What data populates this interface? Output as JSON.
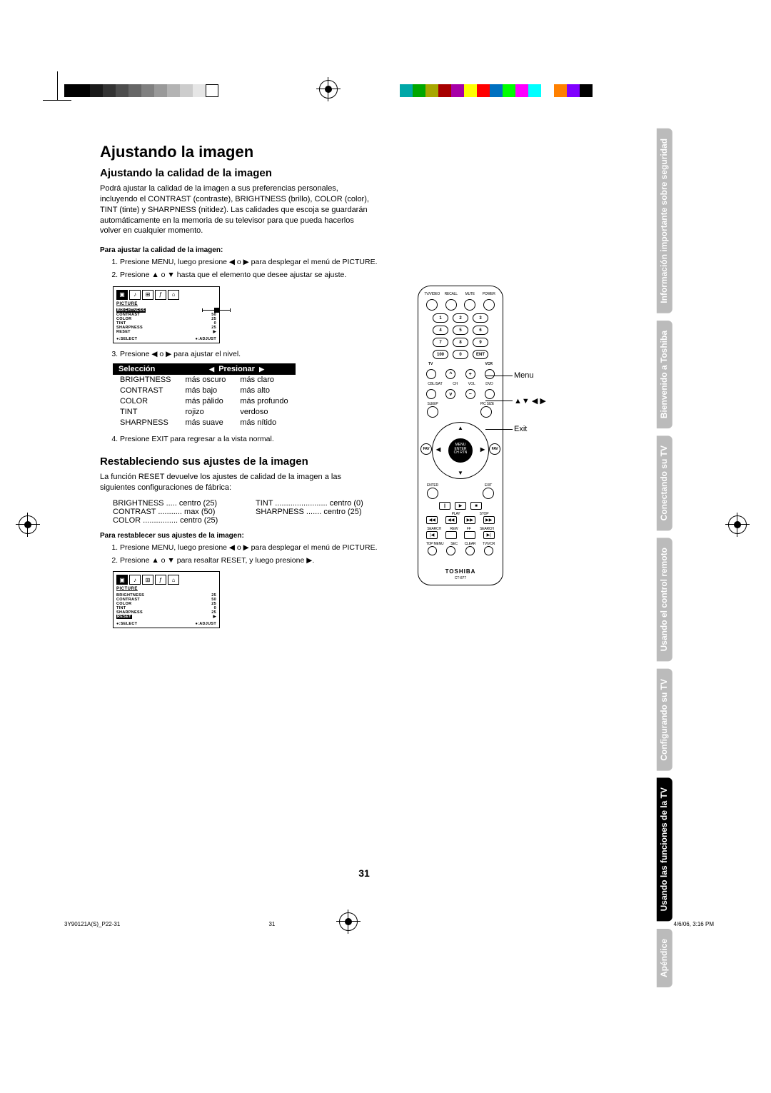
{
  "colorbar_left": [
    "#000",
    "#000",
    "#1a1a1a",
    "#333",
    "#4d4d4d",
    "#666",
    "#808080",
    "#999",
    "#b3b3b3",
    "#ccc",
    "#e6e6e6",
    "#fff"
  ],
  "colorbar_right": [
    "#00a7a7",
    "#00a700",
    "#a7a700",
    "#a70000",
    "#a700a7",
    "#ffff00",
    "#ff0000",
    "#0070c0",
    "#00ff00",
    "#ff00ff",
    "#00ffff",
    "#ffffff",
    "#ff8000",
    "#8000ff",
    "#000"
  ],
  "h1": "Ajustando la imagen",
  "h2a": "Ajustando la calidad de la imagen",
  "intro": "Podrá ajustar la calidad de la imagen a sus preferencias personales, incluyendo el CONTRAST (contraste), BRIGHTNESS (brillo), COLOR (color), TINT (tinte) y SHARPNESS (nitidez). Las calidades que escoja se guardarán automáticamente en la memoria de su televisor para que pueda hacerlos volver en cualquier momento.",
  "sub1": "Para ajustar la calidad de la imagen:",
  "step1": "Presione MENU, luego presione ◀ o ▶ para desplegar el menú de PICTURE.",
  "step2": "Presione ▲ o ▼ hasta que el elemento que desee ajustar se ajuste.",
  "step3": "Presione ◀ o ▶ para ajustar el nivel.",
  "step4": "Presione EXIT para regresar a la vista normal.",
  "osd": {
    "title": "PICTURE",
    "rows": [
      {
        "name": "BRIGHTNESS",
        "val": "25",
        "sel": true
      },
      {
        "name": "CONTRAST",
        "val": "50"
      },
      {
        "name": "COLOR",
        "val": "25"
      },
      {
        "name": "TINT",
        "val": "0"
      },
      {
        "name": "SHARPNESS",
        "val": "25"
      },
      {
        "name": "RESET",
        "val": "▶"
      }
    ],
    "foot_l": "●:SELECT",
    "foot_r": "●:ADJUST"
  },
  "osd2_rows": [
    {
      "name": "BRIGHTNESS",
      "val": "25"
    },
    {
      "name": "CONTRAST",
      "val": "50"
    },
    {
      "name": "COLOR",
      "val": "25"
    },
    {
      "name": "TINT",
      "val": "0"
    },
    {
      "name": "SHARPNESS",
      "val": "25"
    },
    {
      "name": "RESET",
      "val": "▶",
      "sel": true
    }
  ],
  "table": {
    "h1": "Selección",
    "h2": "◀",
    "h3": "Presionar",
    "h4": "▶",
    "rows": [
      [
        "BRIGHTNESS",
        "más oscuro",
        "más claro"
      ],
      [
        "CONTRAST",
        "más bajo",
        "más alto"
      ],
      [
        "COLOR",
        "más pálido",
        "más profundo"
      ],
      [
        "TINT",
        "rojizo",
        "verdoso"
      ],
      [
        "SHARPNESS",
        "más suave",
        "más nítido"
      ]
    ]
  },
  "h2b": "Restableciendo sus ajustes de la imagen",
  "reset_intro": "La función RESET devuelve los ajustes de calidad de la imagen a las siguientes configuraciones de fábrica:",
  "defaults": {
    "col1": [
      "BRIGHTNESS ..... centro (25)",
      "CONTRAST ........... max (50)",
      "COLOR ................ centro (25)"
    ],
    "col2": [
      "TINT ........................ centro (0)",
      "SHARPNESS ....... centro (25)"
    ]
  },
  "sub2": "Para restablecer sus ajustes de la imagen:",
  "rstep1": "Presione MENU, luego presione ◀ o ▶ para desplegar el menú de PICTURE.",
  "rstep2": "Presione ▲ o ▼ para resaltar RESET, y luego presione ▶.",
  "side_tabs": [
    {
      "t": "Información importante sobre seguridad",
      "c": "grey"
    },
    {
      "t": "Bienvenido a Toshiba",
      "c": "grey"
    },
    {
      "t": "Conectando su TV",
      "c": "grey"
    },
    {
      "t": "Usando el control remoto",
      "c": "grey"
    },
    {
      "t": "Configurando su TV",
      "c": "grey"
    },
    {
      "t": "Usando las funciones de la TV",
      "c": "active"
    },
    {
      "t": "Apéndice",
      "c": "grey"
    }
  ],
  "remote": {
    "top_labels": [
      "TV/VIDEO",
      "RECALL",
      "MUTE",
      "POWER"
    ],
    "numbers": [
      [
        "1",
        "2",
        "3"
      ],
      [
        "4",
        "5",
        "6"
      ],
      [
        "7",
        "8",
        "9"
      ],
      [
        "100",
        "0",
        "ENT"
      ]
    ],
    "mode": [
      "TV",
      "VCR"
    ],
    "side_btns": [
      "CBL/SAT",
      "CH",
      "VOL",
      "DVD"
    ],
    "sleep": "SLEEP",
    "picsize": "PIC SIZE",
    "center": "MENU\nENTER\nCH RTN",
    "fav": "FAV",
    "enter": "ENTER",
    "exit": "EXIT",
    "play": "PLAY",
    "stop": "STOP",
    "pause": "||",
    "row_btns": [
      "SEARCH",
      "REW",
      "FF",
      "SEARCH"
    ],
    "row_btns2": [
      "SKIP",
      "SKIP"
    ],
    "bottom": [
      "TOP MENU",
      "SEC",
      "CLEAR",
      "TV/VCR"
    ],
    "brand": "TOSHIBA",
    "model": "CT-877"
  },
  "remote_labels": {
    "menu": "Menu",
    "arrows": "▲▼ ◀ ▶",
    "exit": "Exit"
  },
  "page_num": "31",
  "footer": {
    "left": "3Y90121A(S)_P22-31",
    "mid": "31",
    "right": "4/6/06, 3:16 PM"
  }
}
